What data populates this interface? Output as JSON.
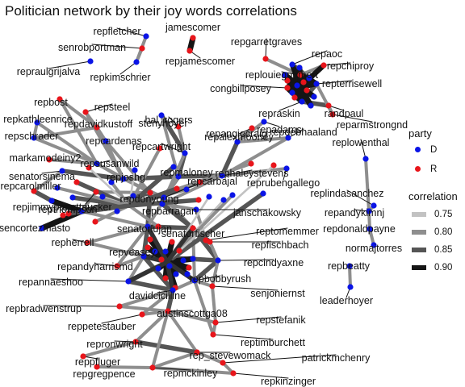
{
  "title": "Politician network by their joy words correlations",
  "colors": {
    "D": "#0a14e6",
    "R": "#e8151b"
  },
  "legend": {
    "party_title": "party",
    "party_items": [
      {
        "label": "D"
      },
      {
        "label": "R"
      }
    ],
    "corr_title": "correlation",
    "corr_items": [
      {
        "label": "0.75",
        "color": "#c2c2c2"
      },
      {
        "label": "0.80",
        "color": "#8e8e8e"
      },
      {
        "label": "0.85",
        "color": "#555555"
      },
      {
        "label": "0.90",
        "color": "#151515"
      }
    ]
  },
  "nodes": [
    {
      "id": "repfletcher",
      "party": "D",
      "label": true
    },
    {
      "id": "jamescomer",
      "party": "R",
      "label": true
    },
    {
      "id": "senrobportman",
      "party": "R",
      "label": true
    },
    {
      "id": "repjamescomer",
      "party": "R",
      "label": true
    },
    {
      "id": "repraulgrijalva",
      "party": "D",
      "label": true
    },
    {
      "id": "repkimschrier",
      "party": "D",
      "label": true
    },
    {
      "id": "repgarretgraves",
      "party": "R",
      "label": true
    },
    {
      "id": "repaoc",
      "party": "D",
      "label": true
    },
    {
      "id": "repchiproy",
      "party": "R",
      "label": true
    },
    {
      "id": "replouiegohmert",
      "party": "R",
      "label": true
    },
    {
      "id": "congbillposey",
      "party": "R",
      "label": true
    },
    {
      "id": "repterrisewell",
      "party": "D",
      "label": true
    },
    {
      "id": "repraskin",
      "party": "D",
      "label": true
    },
    {
      "id": "randpaul",
      "party": "R",
      "label": true
    },
    {
      "id": "reparmstrongnd",
      "party": "R",
      "label": true
    },
    {
      "id": "repbost",
      "party": "R",
      "label": true
    },
    {
      "id": "repsteel",
      "party": "R",
      "label": true
    },
    {
      "id": "repkathleenrice",
      "party": "D",
      "label": true
    },
    {
      "id": "repdavidkustoff",
      "party": "R",
      "label": true
    },
    {
      "id": "stenyhoyer",
      "party": "D",
      "label": true
    },
    {
      "id": "repschrader",
      "party": "D",
      "label": true
    },
    {
      "id": "repcardenas",
      "party": "D",
      "label": true
    },
    {
      "id": "hal_rogers",
      "party": "R",
      "label": true
    },
    {
      "id": "repalexmooney",
      "party": "R",
      "label": true
    },
    {
      "id": "repadams",
      "party": "D",
      "label": true
    },
    {
      "id": "repcartwright",
      "party": "D",
      "label": true
    },
    {
      "id": "repangiecraig",
      "party": "D",
      "label": true
    },
    {
      "id": "repdebhaaland",
      "party": "D",
      "label": true
    },
    {
      "id": "markamodeiny2",
      "party": "R",
      "label": true
    },
    {
      "id": "repsusanwild",
      "party": "D",
      "label": true
    },
    {
      "id": "senatorsinema",
      "party": "D",
      "label": true
    },
    {
      "id": "repjoshg",
      "party": "D",
      "label": true
    },
    {
      "id": "repmaloney",
      "party": "D",
      "label": true
    },
    {
      "id": "rephaleystevens",
      "party": "D",
      "label": true
    },
    {
      "id": "reprubengallego",
      "party": "D",
      "label": true
    },
    {
      "id": "replowenthal",
      "party": "D",
      "label": true
    },
    {
      "id": "repcarolmiller",
      "party": "R",
      "label": true
    },
    {
      "id": "repbarragan",
      "party": "D",
      "label": true
    },
    {
      "id": "repcarbajal",
      "party": "D",
      "label": true
    },
    {
      "id": "repjimmypanetta",
      "party": "D",
      "label": true
    },
    {
      "id": "repdonyoung",
      "party": "R",
      "label": true
    },
    {
      "id": "replindasanchez",
      "party": "D",
      "label": true
    },
    {
      "id": "repthompson",
      "party": "D",
      "label": true
    },
    {
      "id": "repsmucker",
      "party": "R",
      "label": true
    },
    {
      "id": "janschakowsky",
      "party": "D",
      "label": true
    },
    {
      "id": "repandykimnj",
      "party": "D",
      "label": true
    },
    {
      "id": "sencortezmasto",
      "party": "D",
      "label": true
    },
    {
      "id": "senatorlujan",
      "party": "D",
      "label": true
    },
    {
      "id": "senatorfischer",
      "party": "R",
      "label": true
    },
    {
      "id": "reptomemmer",
      "party": "R",
      "label": true
    },
    {
      "id": "repdonaldpayne",
      "party": "D",
      "label": true
    },
    {
      "id": "repherrell",
      "party": "R",
      "label": true
    },
    {
      "id": "repfischbach",
      "party": "R",
      "label": true
    },
    {
      "id": "normajtorres",
      "party": "D",
      "label": true
    },
    {
      "id": "repveasey",
      "party": "D",
      "label": true
    },
    {
      "id": "repandyharrismd",
      "party": "R",
      "label": true
    },
    {
      "id": "repcindyaxne",
      "party": "D",
      "label": true
    },
    {
      "id": "repbeatty",
      "party": "D",
      "label": true
    },
    {
      "id": "repannaeshoo",
      "party": "D",
      "label": true
    },
    {
      "id": "repbobbyrush",
      "party": "D",
      "label": true
    },
    {
      "id": "leaderhoyer",
      "party": "D",
      "label": true
    },
    {
      "id": "senjoniernst",
      "party": "R",
      "label": true
    },
    {
      "id": "davidcicilline",
      "party": "D",
      "label": true
    },
    {
      "id": "repbradwenstrup",
      "party": "R",
      "label": true
    },
    {
      "id": "austinscottga08",
      "party": "R",
      "label": true
    },
    {
      "id": "reppetestauber",
      "party": "R",
      "label": true
    },
    {
      "id": "repstefanik",
      "party": "R",
      "label": true
    },
    {
      "id": "reptimburchett",
      "party": "R",
      "label": true
    },
    {
      "id": "repronwright",
      "party": "R",
      "label": true
    },
    {
      "id": "rep_stevewomack",
      "party": "R",
      "label": true
    },
    {
      "id": "patrickmchenry",
      "party": "R",
      "label": true
    },
    {
      "id": "reppfluger",
      "party": "R",
      "label": true
    },
    {
      "id": "repgregpence",
      "party": "R",
      "label": true
    },
    {
      "id": "repmckinley",
      "party": "R",
      "label": true
    },
    {
      "id": "repkinzinger",
      "party": "R",
      "label": true
    }
  ]
}
